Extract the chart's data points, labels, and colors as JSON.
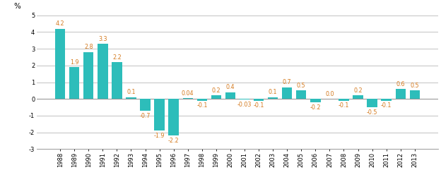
{
  "years": [
    1988,
    1989,
    1990,
    1991,
    1992,
    1993,
    1994,
    1995,
    1996,
    1997,
    1998,
    1999,
    2000,
    2001,
    2002,
    2003,
    2004,
    2005,
    2006,
    2007,
    2008,
    2009,
    2010,
    2011,
    2012,
    2013
  ],
  "values": [
    4.2,
    1.9,
    2.8,
    3.3,
    2.2,
    0.1,
    -0.7,
    -1.9,
    -2.2,
    0.04,
    -0.1,
    0.2,
    0.4,
    -0.03,
    -0.1,
    0.1,
    0.7,
    0.5,
    -0.2,
    0.0,
    -0.1,
    0.2,
    -0.5,
    -0.1,
    0.6,
    0.5
  ],
  "labels": [
    "4.2",
    "1.9",
    "2.8",
    "3.3",
    "2.2",
    "0.1",
    "-0.7",
    "-1.9",
    "-2.2",
    "0.04",
    "-0.1",
    "0.2",
    "0.4",
    "-0.03",
    "-0.1",
    "0.1",
    "0.7",
    "0.5",
    "-0.2",
    "0.0",
    "-0.1",
    "0.2",
    "-0.5",
    "-0.1",
    "0.6",
    "0.5"
  ],
  "bar_color": "#2DBDBA",
  "ylim": [
    -3,
    5
  ],
  "yticks": [
    -3,
    -2,
    -1,
    0,
    1,
    2,
    3,
    4,
    5
  ],
  "ylabel_text": "%",
  "background_color": "#ffffff",
  "grid_color": "#b8b8b8",
  "label_fontsize": 5.8,
  "label_color": "#d47a1f",
  "axis_fontsize": 6.0,
  "ylabel_fontsize": 7.5
}
